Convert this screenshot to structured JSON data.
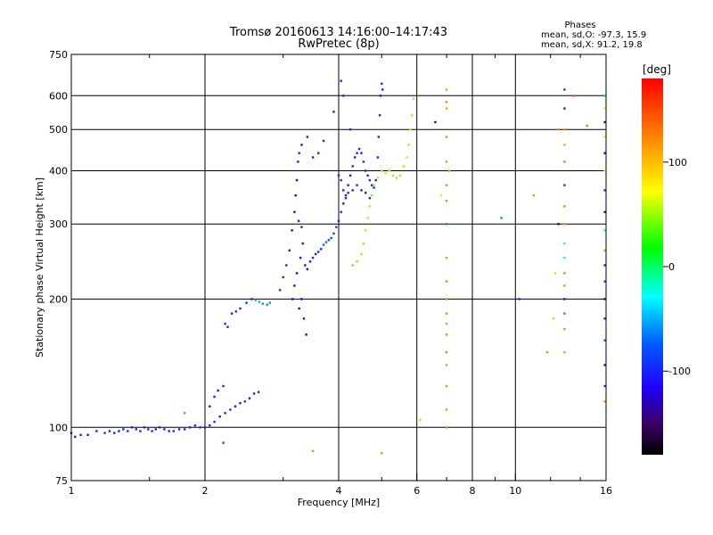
{
  "chart_data": {
    "type": "scatter",
    "title": "Tromsø 20160613 14:16:00–14:17:43",
    "subtitle": "RwPretec (8p)",
    "xlabel": "Frequency [MHz]",
    "ylabel": "Stationary phase Virtual Height [km]",
    "x_scale": "log",
    "y_scale": "log",
    "xlim": [
      1,
      16
    ],
    "ylim": [
      75,
      750
    ],
    "x_ticks": [
      1,
      2,
      4,
      6,
      8,
      10,
      16
    ],
    "x_tick_labels": [
      "1",
      "2",
      "4",
      "6",
      "8",
      "10",
      "16"
    ],
    "x_minor_ticks": [
      1.5,
      3,
      5,
      7,
      9,
      12,
      14
    ],
    "y_ticks": [
      75,
      100,
      200,
      300,
      400,
      500,
      600,
      750
    ],
    "y_tick_labels": [
      "75",
      "100",
      "200",
      "300",
      "400",
      "500",
      "600",
      "750"
    ],
    "grid": true,
    "stats": {
      "heading": "Phases",
      "line_o": "mean, sd,O: -97.3, 15.9",
      "line_x": "mean, sd,X:  91.2, 19.8"
    },
    "colorbar": {
      "label": "[deg]",
      "min": -180,
      "max": 180,
      "ticks": [
        100,
        0,
        -100
      ],
      "tick_labels": [
        "100",
        "0",
        "-100"
      ]
    },
    "series": [
      {
        "points": [
          [
            1.0,
            97,
            -100
          ],
          [
            1.02,
            95,
            -105
          ],
          [
            1.05,
            96,
            -98
          ],
          [
            1.09,
            96,
            -102
          ],
          [
            1.14,
            98,
            -100
          ],
          [
            1.19,
            97,
            -96
          ],
          [
            1.22,
            98,
            -104
          ],
          [
            1.25,
            97,
            -100
          ],
          [
            1.28,
            98,
            -99
          ],
          [
            1.31,
            99,
            -101
          ],
          [
            1.34,
            98,
            -97
          ],
          [
            1.37,
            100,
            -103
          ],
          [
            1.4,
            99,
            -100
          ],
          [
            1.43,
            98,
            -98
          ],
          [
            1.46,
            100,
            -102
          ],
          [
            1.49,
            99,
            -100
          ],
          [
            1.52,
            98,
            -95
          ],
          [
            1.55,
            99,
            -101
          ],
          [
            1.58,
            100,
            -100
          ],
          [
            1.62,
            99,
            -99
          ],
          [
            1.66,
            98,
            -103
          ],
          [
            1.7,
            98,
            -100
          ],
          [
            1.75,
            99,
            -98
          ],
          [
            1.8,
            99,
            -101
          ],
          [
            1.85,
            100,
            -100
          ],
          [
            1.9,
            101,
            -97
          ],
          [
            1.95,
            100,
            -102
          ],
          [
            2.0,
            100,
            -100
          ],
          [
            2.05,
            101,
            -99
          ],
          [
            2.1,
            103,
            -98
          ],
          [
            2.16,
            106,
            -101
          ],
          [
            2.22,
            108,
            -100
          ],
          [
            2.28,
            110,
            -96
          ],
          [
            2.34,
            112,
            -99
          ],
          [
            2.4,
            114,
            -101
          ],
          [
            2.46,
            115,
            -98
          ],
          [
            2.52,
            117,
            -102
          ],
          [
            2.58,
            120,
            -100
          ],
          [
            2.64,
            121,
            -99
          ],
          [
            2.05,
            112,
            -101
          ],
          [
            2.1,
            118,
            -104
          ],
          [
            2.14,
            122,
            -100
          ],
          [
            2.2,
            125,
            -97
          ],
          [
            2.22,
            175,
            -98
          ],
          [
            2.25,
            172,
            -100
          ],
          [
            2.3,
            185,
            -102
          ],
          [
            2.35,
            187,
            -99
          ],
          [
            2.4,
            190,
            -100
          ],
          [
            2.48,
            196,
            -97
          ],
          [
            2.55,
            200,
            -99
          ],
          [
            2.6,
            199,
            -60
          ],
          [
            2.65,
            197,
            -55
          ],
          [
            2.7,
            195,
            -58
          ],
          [
            2.76,
            194,
            -60
          ],
          [
            2.8,
            196,
            -57
          ],
          [
            2.95,
            210,
            -100
          ],
          [
            3.0,
            225,
            -98
          ],
          [
            3.05,
            240,
            -102
          ],
          [
            3.1,
            260,
            -110
          ],
          [
            3.14,
            290,
            -115
          ],
          [
            3.18,
            320,
            -112
          ],
          [
            3.2,
            350,
            -118
          ],
          [
            3.22,
            380,
            -110
          ],
          [
            3.24,
            420,
            -105
          ],
          [
            3.26,
            440,
            -100
          ],
          [
            3.15,
            200,
            -120
          ],
          [
            3.18,
            215,
            -115
          ],
          [
            3.22,
            230,
            -118
          ],
          [
            3.28,
            250,
            -112
          ],
          [
            3.32,
            270,
            -110
          ],
          [
            3.36,
            240,
            -108
          ],
          [
            3.3,
            200,
            -115
          ],
          [
            3.26,
            190,
            -118
          ],
          [
            3.34,
            180,
            -110
          ],
          [
            3.38,
            165,
            -112
          ],
          [
            3.25,
            305,
            -100
          ],
          [
            3.3,
            295,
            -102
          ],
          [
            3.4,
            235,
            -105
          ],
          [
            3.45,
            245,
            -100
          ],
          [
            3.5,
            250,
            -98
          ],
          [
            3.55,
            255,
            -102
          ],
          [
            3.6,
            258,
            -96
          ],
          [
            3.65,
            262,
            -90
          ],
          [
            3.7,
            268,
            -70
          ],
          [
            3.75,
            272,
            -65
          ],
          [
            3.8,
            275,
            -75
          ],
          [
            3.85,
            278,
            -80
          ],
          [
            3.9,
            285,
            -85
          ],
          [
            3.95,
            295,
            -90
          ],
          [
            4.0,
            305,
            -95
          ],
          [
            4.05,
            320,
            -100
          ],
          [
            4.1,
            335,
            -102
          ],
          [
            4.15,
            350,
            -98
          ],
          [
            4.2,
            370,
            -100
          ],
          [
            4.25,
            390,
            -104
          ],
          [
            4.3,
            410,
            -100
          ],
          [
            4.35,
            430,
            -98
          ],
          [
            4.4,
            440,
            -102
          ],
          [
            4.45,
            450,
            -99
          ],
          [
            4.5,
            440,
            -101
          ],
          [
            4.55,
            420,
            -100
          ],
          [
            4.6,
            400,
            -98
          ],
          [
            4.65,
            390,
            -102
          ],
          [
            4.7,
            380,
            -100
          ],
          [
            4.75,
            370,
            -97
          ],
          [
            4.8,
            365,
            -100
          ],
          [
            4.85,
            380,
            -102
          ],
          [
            4.9,
            430,
            -100
          ],
          [
            4.92,
            480,
            -98
          ],
          [
            4.95,
            540,
            -101
          ],
          [
            4.97,
            600,
            -100
          ],
          [
            5.0,
            640,
            -99
          ],
          [
            5.02,
            620,
            -102
          ],
          [
            4.0,
            390,
            -100
          ],
          [
            4.05,
            380,
            -98
          ],
          [
            4.1,
            360,
            -102
          ],
          [
            4.15,
            345,
            -99
          ],
          [
            4.2,
            355,
            -101
          ],
          [
            4.3,
            360,
            -100
          ],
          [
            4.4,
            370,
            -97
          ],
          [
            4.5,
            360,
            -103
          ],
          [
            4.6,
            355,
            -100
          ],
          [
            4.7,
            345,
            -99
          ],
          [
            3.3,
            460,
            -110
          ],
          [
            3.5,
            430,
            -105
          ],
          [
            3.6,
            440,
            -100
          ],
          [
            3.4,
            480,
            -102
          ],
          [
            3.7,
            470,
            -98
          ],
          [
            3.9,
            550,
            -100
          ],
          [
            4.05,
            650,
            -102
          ],
          [
            4.1,
            600,
            -99
          ],
          [
            4.25,
            500,
            -101
          ],
          [
            4.3,
            240,
            40
          ],
          [
            4.4,
            245,
            45
          ],
          [
            4.5,
            255,
            50
          ],
          [
            4.55,
            270,
            48
          ],
          [
            4.6,
            290,
            52
          ],
          [
            4.65,
            310,
            55
          ],
          [
            4.7,
            330,
            50
          ],
          [
            4.75,
            350,
            45
          ],
          [
            4.8,
            370,
            48
          ],
          [
            4.9,
            385,
            50
          ],
          [
            5.0,
            400,
            52
          ],
          [
            5.1,
            395,
            55
          ],
          [
            5.2,
            400,
            50
          ],
          [
            5.3,
            390,
            48
          ],
          [
            5.4,
            385,
            45
          ],
          [
            5.5,
            390,
            50
          ],
          [
            5.6,
            410,
            52
          ],
          [
            5.7,
            430,
            55
          ],
          [
            5.75,
            460,
            50
          ],
          [
            5.8,
            500,
            48
          ],
          [
            5.85,
            540,
            52
          ],
          [
            5.9,
            590,
            50
          ],
          [
            7.0,
            620,
            120
          ],
          [
            7.0,
            580,
            125
          ],
          [
            7.0,
            560,
            118
          ],
          [
            7.0,
            480,
            122
          ],
          [
            7.0,
            420,
            120
          ],
          [
            7.0,
            370,
            124
          ],
          [
            7.0,
            340,
            121
          ],
          [
            7.0,
            300,
            -60
          ],
          [
            7.0,
            250,
            119
          ],
          [
            7.0,
            220,
            122
          ],
          [
            7.0,
            200,
            120
          ],
          [
            7.0,
            185,
            125
          ],
          [
            7.0,
            175,
            118
          ],
          [
            7.0,
            165,
            121
          ],
          [
            7.0,
            150,
            123
          ],
          [
            7.0,
            140,
            120
          ],
          [
            7.0,
            125,
            122
          ],
          [
            7.0,
            110,
            119
          ],
          [
            7.0,
            100,
            124
          ],
          [
            6.6,
            520,
            -150
          ],
          [
            6.8,
            350,
            80
          ],
          [
            7.1,
            400,
            118
          ],
          [
            12.9,
            620,
            -90
          ],
          [
            12.9,
            560,
            -100
          ],
          [
            12.9,
            500,
            120
          ],
          [
            12.9,
            460,
            110
          ],
          [
            12.9,
            420,
            130
          ],
          [
            12.9,
            370,
            -90
          ],
          [
            12.9,
            330,
            125
          ],
          [
            12.9,
            300,
            118
          ],
          [
            12.9,
            270,
            -30
          ],
          [
            12.9,
            250,
            -20
          ],
          [
            12.9,
            230,
            125
          ],
          [
            12.9,
            215,
            120
          ],
          [
            12.9,
            200,
            -110
          ],
          [
            12.9,
            185,
            -60
          ],
          [
            12.9,
            170,
            122
          ],
          [
            12.9,
            150,
            115
          ],
          [
            12.5,
            500,
            120
          ],
          [
            12.5,
            300,
            -150
          ],
          [
            12.3,
            230,
            90
          ],
          [
            12.2,
            180,
            100
          ],
          [
            11.8,
            150,
            120
          ],
          [
            15.9,
            600,
            -40
          ],
          [
            15.9,
            560,
            80
          ],
          [
            15.9,
            520,
            -140
          ],
          [
            15.9,
            480,
            60
          ],
          [
            15.9,
            440,
            -120
          ],
          [
            15.9,
            400,
            70
          ],
          [
            15.9,
            360,
            -90
          ],
          [
            15.9,
            320,
            -110
          ],
          [
            15.9,
            290,
            -20
          ],
          [
            15.9,
            260,
            120
          ],
          [
            15.9,
            240,
            -100
          ],
          [
            15.9,
            220,
            -80
          ],
          [
            15.9,
            200,
            -120
          ],
          [
            15.9,
            180,
            -100
          ],
          [
            15.9,
            160,
            -70
          ],
          [
            15.9,
            140,
            -110
          ],
          [
            15.9,
            125,
            -90
          ],
          [
            15.9,
            115,
            120
          ],
          [
            2.2,
            92,
            -80
          ],
          [
            1.8,
            108,
            130
          ],
          [
            3.5,
            88,
            120
          ],
          [
            5.0,
            87,
            120
          ],
          [
            6.1,
            104,
            50
          ],
          [
            9.3,
            310,
            -60
          ],
          [
            10.2,
            200,
            -100
          ],
          [
            11.0,
            350,
            120
          ],
          [
            13.5,
            600,
            140
          ],
          [
            14.5,
            510,
            130
          ]
        ]
      }
    ]
  }
}
